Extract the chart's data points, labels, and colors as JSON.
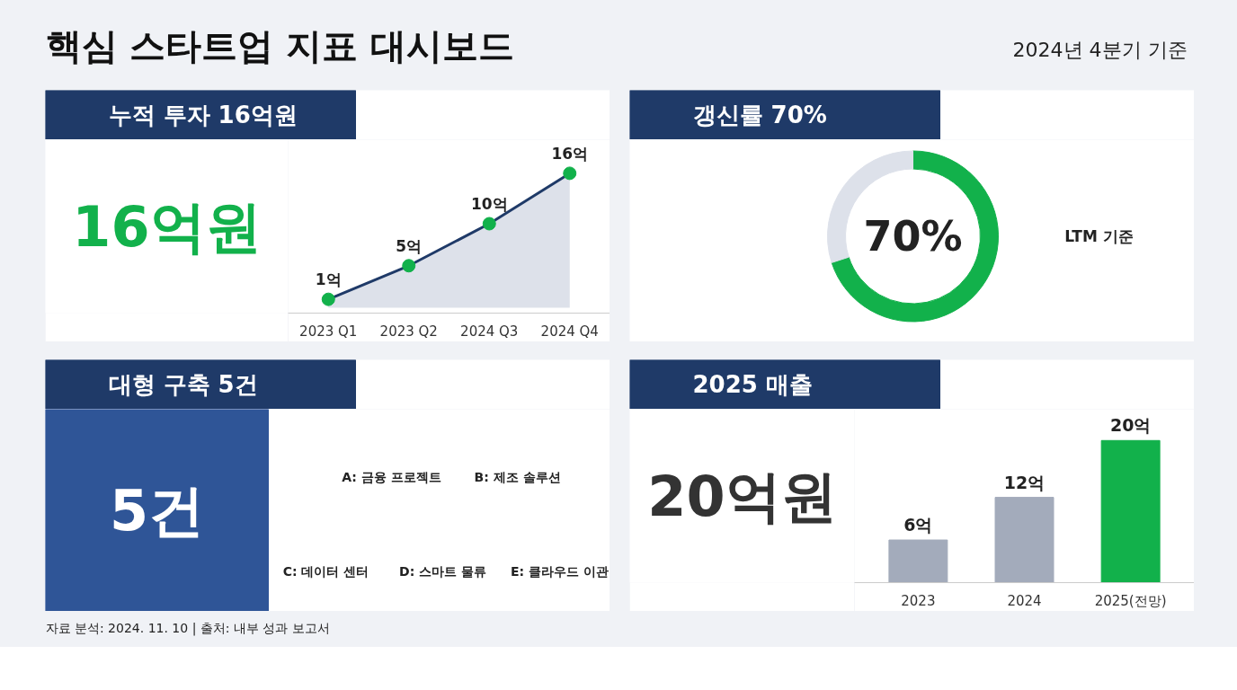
{
  "chart_data": [
    {
      "type": "other",
      "title": "핵심 스타트업 지표 대시보드",
      "subtitle": "2024년 4분기 기준",
      "annotations": [
        "자료 분석: 2024. 11. 10 | 출처: 내부 성과 보고서"
      ]
    },
    {
      "type": "area",
      "title": "누적 투자 16억원",
      "categories": [
        "2023 Q1",
        "2023 Q2",
        "2024 Q3",
        "2024 Q4"
      ],
      "values": [
        1,
        5,
        10,
        16
      ],
      "value_labels": [
        "1억",
        "5억",
        "10억",
        "16억"
      ],
      "color": "#1f3a68",
      "colors": [
        "#12b14b",
        "#12b14b",
        "#12b14b",
        "#12b14b"
      ],
      "marker": "circle",
      "annotations": [
        "16억원"
      ]
    },
    {
      "type": "donut",
      "title": "갱신률 70%",
      "categories": [
        null,
        null
      ],
      "values": [
        70,
        30
      ],
      "colors": [
        "#12b14b",
        "#dde1ea"
      ],
      "annotations": [
        "70%",
        "LTM 기준"
      ]
    },
    {
      "type": "other",
      "title": "대형 구축 5건",
      "annotations": [
        "5건",
        "A: 금융 프로젝트",
        "B: 제조 솔루션",
        "C: 데이터 센터",
        "D: 스마트 물류",
        "E: 클라우드 이관"
      ]
    },
    {
      "type": "bar",
      "title": "2025 매출",
      "categories": [
        "2023",
        "2024",
        "2025(전망)"
      ],
      "values": [
        6,
        12,
        20
      ],
      "value_labels": [
        "6억",
        "12억",
        "20억"
      ],
      "colors": [
        "#a3abbb",
        "#a3abbb",
        "#12b14b"
      ],
      "annotations": [
        "20억원"
      ]
    }
  ]
}
